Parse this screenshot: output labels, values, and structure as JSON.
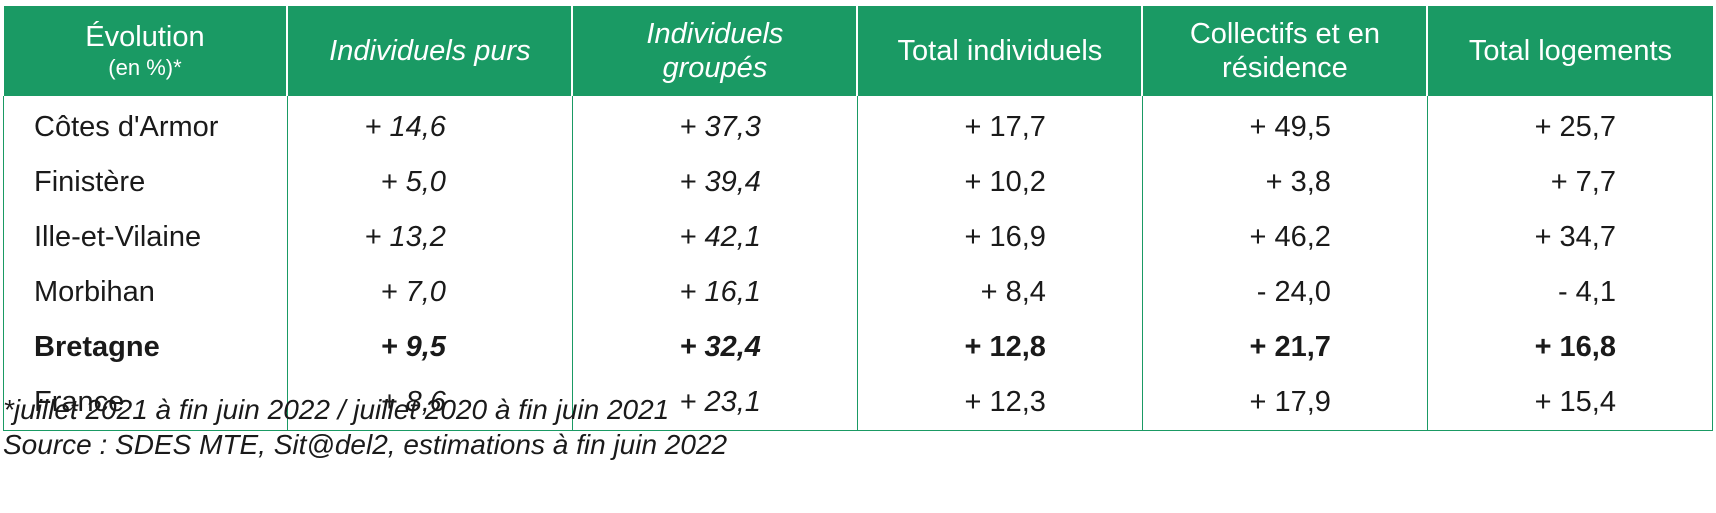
{
  "table": {
    "headers": {
      "col0_line1": "Évolution",
      "col0_line2": "(en %)*",
      "col1": "Individuels purs",
      "col2_line1": "Individuels",
      "col2_line2": "groupés",
      "col3": "Total individuels",
      "col4_line1": "Collectifs et en",
      "col4_line2": "résidence",
      "col5": "Total logements"
    },
    "rows": [
      {
        "label": "Côtes d'Armor",
        "v1": "+ 14,6",
        "v2": "+ 37,3",
        "v3": "+ 17,7",
        "v4": "+ 49,5",
        "v5": "+ 25,7"
      },
      {
        "label": "Finistère",
        "v1": "+ 5,0",
        "v2": "+ 39,4",
        "v3": "+ 10,2",
        "v4": "+ 3,8",
        "v5": "+ 7,7"
      },
      {
        "label": "Ille-et-Vilaine",
        "v1": "+ 13,2",
        "v2": "+ 42,1",
        "v3": "+ 16,9",
        "v4": "+ 46,2",
        "v5": "+ 34,7"
      },
      {
        "label": "Morbihan",
        "v1": "+ 7,0",
        "v2": "+ 16,1",
        "v3": "+ 8,4",
        "v4": "- 24,0",
        "v5": "- 4,1"
      },
      {
        "label": "Bretagne",
        "v1": "+ 9,5",
        "v2": "+ 32,4",
        "v3": "+ 12,8",
        "v4": "+ 21,7",
        "v5": "+ 16,8"
      },
      {
        "label": "France",
        "v1": "+ 8,6",
        "v2": "+ 23,1",
        "v3": "+ 12,3",
        "v4": "+ 17,9",
        "v5": "+ 15,4"
      }
    ]
  },
  "notes": {
    "footnote": "*juillet 2021 à fin juin 2022 / juillet 2020 à fin juin 2021",
    "source": "Source : SDES MTE, Sit@del2, estimations à fin juin 2022"
  },
  "colors": {
    "header_bg": "#1a9a64",
    "header_text": "#ffffff",
    "border": "#1a9a64"
  }
}
